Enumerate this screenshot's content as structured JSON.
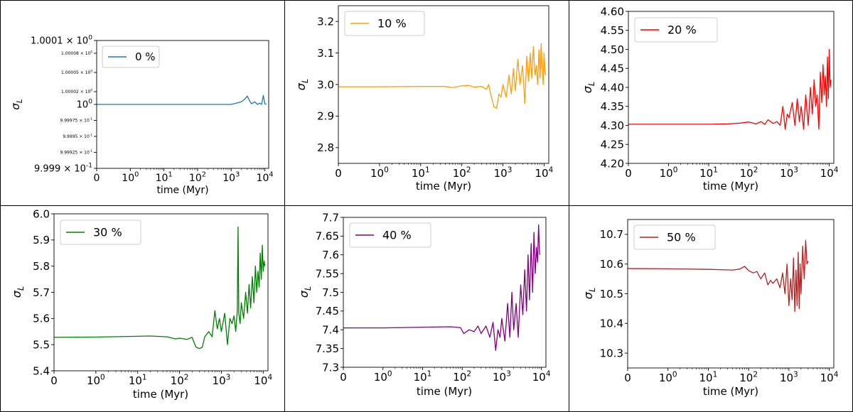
{
  "chart_data": [
    {
      "type": "line",
      "xlabel": "time (Myr)",
      "ylabel": "σ_L",
      "xscale": "symlog (linear 0–1, log above)",
      "xticks": [
        "0",
        "10^0",
        "10^1",
        "10^2",
        "10^3",
        "10^4"
      ],
      "ylim": [
        0.9999,
        1.0001
      ],
      "yticks": [
        {
          "value": 0.9999,
          "mant": "9.999",
          "exp": "-1"
        },
        {
          "value": 0.999925,
          "mant": "9.99925",
          "exp": "-1"
        },
        {
          "value": 0.99995,
          "mant": "9.9995",
          "exp": "-1"
        },
        {
          "value": 0.999975,
          "mant": "9.99975",
          "exp": "-1"
        },
        {
          "value": 1.0,
          "mant": "",
          "exp": "0"
        },
        {
          "value": 1.00002,
          "mant": "1.00002",
          "exp": "0"
        },
        {
          "value": 1.00005,
          "mant": "1.00005",
          "exp": "0"
        },
        {
          "value": 1.00008,
          "mant": "1.00008",
          "exp": "0"
        },
        {
          "value": 1.0001,
          "mant": "1.0001",
          "exp": "0"
        }
      ],
      "legend": "top-left",
      "series": [
        {
          "name": "0 %",
          "color": "#1f77b4",
          "x": [
            0,
            1,
            10,
            100,
            1000,
            2000,
            2500,
            3000,
            3500,
            4000,
            5000,
            6000,
            7000,
            8000,
            9000,
            10000,
            11000
          ],
          "y": [
            1.0,
            1.0,
            1.0,
            1.0,
            1.0,
            1.000004,
            1.000008,
            1.000013,
            1.000006,
            1.000001,
            1.000004,
            1.0,
            1.000002,
            1.0,
            1.000014,
            1.000001,
            1.0
          ]
        }
      ]
    },
    {
      "type": "line",
      "xlabel": "time (Myr)",
      "ylabel": "σ_L",
      "xticks": [
        "0",
        "10^0",
        "10^1",
        "10^2",
        "10^3",
        "10^4"
      ],
      "ylim": [
        2.75,
        3.25
      ],
      "yticks": [
        2.8,
        2.9,
        3.0,
        3.1,
        3.2
      ],
      "legend": "top-left",
      "series": [
        {
          "name": "10 %",
          "color": "#ff9d0a",
          "x": [
            0,
            1,
            10,
            40,
            60,
            100,
            150,
            200,
            300,
            400,
            450,
            500,
            550,
            600,
            700,
            800,
            900,
            1000,
            1200,
            1400,
            1600,
            1800,
            2000,
            2300,
            2600,
            3000,
            3400,
            3800,
            4200,
            4600,
            5000,
            5500,
            6000,
            6500,
            7000,
            7500,
            8000,
            8500,
            9000,
            9500,
            10000,
            10500,
            11000
          ],
          "y": [
            2.993,
            2.993,
            2.994,
            2.994,
            2.99,
            2.996,
            2.997,
            2.992,
            2.994,
            2.985,
            3.0,
            2.97,
            2.95,
            2.93,
            2.925,
            2.97,
            2.96,
            3.0,
            2.96,
            3.03,
            2.97,
            3.05,
            2.98,
            3.08,
            3.0,
            3.06,
            2.94,
            3.09,
            3.01,
            3.1,
            3.02,
            3.12,
            3.03,
            3.06,
            3.0,
            3.11,
            3.02,
            3.13,
            3.05,
            3.0,
            3.1,
            3.04,
            3.03
          ]
        }
      ]
    },
    {
      "type": "line",
      "xlabel": "time (Myr)",
      "ylabel": "σ_L",
      "xticks": [
        "0",
        "10^0",
        "10^1",
        "10^2",
        "10^3",
        "10^4"
      ],
      "ylim": [
        4.2,
        4.6
      ],
      "yticks": [
        4.2,
        4.25,
        4.3,
        4.35,
        4.4,
        4.45,
        4.5,
        4.55,
        4.6
      ],
      "legend": "top-left",
      "series": [
        {
          "name": "20 %",
          "color": "#ff0000",
          "x": [
            0,
            1,
            10,
            30,
            60,
            100,
            150,
            200,
            250,
            300,
            400,
            500,
            600,
            700,
            800,
            900,
            1000,
            1200,
            1400,
            1600,
            1800,
            2000,
            2300,
            2600,
            3000,
            3400,
            3800,
            4200,
            4600,
            5000,
            5500,
            6000,
            6500,
            7000,
            7500,
            8000,
            8500,
            9000,
            9500,
            10000,
            10500,
            11000
          ],
          "y": [
            4.303,
            4.303,
            4.303,
            4.304,
            4.306,
            4.309,
            4.304,
            4.31,
            4.303,
            4.315,
            4.305,
            4.31,
            4.3,
            4.35,
            4.29,
            4.33,
            4.32,
            4.36,
            4.3,
            4.37,
            4.31,
            4.35,
            4.29,
            4.38,
            4.3,
            4.4,
            4.33,
            4.42,
            4.35,
            4.38,
            4.29,
            4.44,
            4.36,
            4.46,
            4.38,
            4.43,
            4.35,
            4.48,
            4.37,
            4.5,
            4.4,
            4.42
          ]
        }
      ]
    },
    {
      "type": "line",
      "xlabel": "time (Myr)",
      "ylabel": "σ_L",
      "xticks": [
        "0",
        "10^0",
        "10^1",
        "10^2",
        "10^3",
        "10^4"
      ],
      "ylim": [
        5.4,
        6.0
      ],
      "yticks": [
        5.4,
        5.5,
        5.6,
        5.7,
        5.8,
        5.9,
        6.0
      ],
      "legend": "top-left",
      "series": [
        {
          "name": "30 %",
          "color": "#008000",
          "x": [
            0,
            1,
            10,
            20,
            50,
            80,
            100,
            150,
            200,
            220,
            250,
            300,
            350,
            400,
            450,
            500,
            600,
            700,
            800,
            900,
            1000,
            1200,
            1400,
            1600,
            1800,
            2000,
            2200,
            2400,
            2500,
            2600,
            2800,
            3000,
            3400,
            3800,
            4200,
            4600,
            5000,
            5500,
            6000,
            6500,
            7000,
            7500,
            8000,
            8500,
            9000,
            9500,
            10000,
            10500,
            11000
          ],
          "y": [
            5.528,
            5.529,
            5.532,
            5.533,
            5.53,
            5.522,
            5.525,
            5.52,
            5.528,
            5.51,
            5.49,
            5.485,
            5.49,
            5.53,
            5.54,
            5.55,
            5.53,
            5.63,
            5.56,
            5.6,
            5.55,
            5.62,
            5.5,
            5.6,
            5.58,
            5.61,
            5.55,
            5.63,
            5.95,
            5.62,
            5.58,
            5.66,
            5.6,
            5.7,
            5.62,
            5.73,
            5.64,
            5.76,
            5.66,
            5.8,
            5.7,
            5.78,
            5.72,
            5.85,
            5.75,
            5.88,
            5.78,
            5.82,
            5.8
          ]
        }
      ]
    },
    {
      "type": "line",
      "xlabel": "time (Myr)",
      "ylabel": "σ_L",
      "xticks": [
        "0",
        "10^0",
        "10^1",
        "10^2",
        "10^3",
        "10^4"
      ],
      "ylim": [
        7.3,
        7.7
      ],
      "yticks": [
        7.3,
        7.35,
        7.4,
        7.45,
        7.5,
        7.55,
        7.6,
        7.65,
        7.7
      ],
      "legend": "top-left",
      "series": [
        {
          "name": "40 %",
          "color": "#800080",
          "x": [
            0,
            1,
            10,
            50,
            90,
            110,
            150,
            200,
            250,
            300,
            400,
            500,
            600,
            700,
            800,
            900,
            1000,
            1200,
            1400,
            1600,
            1800,
            2000,
            2300,
            2600,
            3000,
            3400,
            3800,
            4200,
            4600,
            5000,
            5500,
            6000,
            6500,
            7000,
            7500,
            8000,
            8500,
            9000
          ],
          "y": [
            7.405,
            7.405,
            7.407,
            7.408,
            7.406,
            7.39,
            7.4,
            7.395,
            7.41,
            7.39,
            7.41,
            7.38,
            7.42,
            7.345,
            7.4,
            7.38,
            7.43,
            7.37,
            7.47,
            7.38,
            7.5,
            7.4,
            7.47,
            7.38,
            7.52,
            7.44,
            7.56,
            7.45,
            7.6,
            7.48,
            7.63,
            7.5,
            7.66,
            7.55,
            7.62,
            7.58,
            7.68,
            7.6
          ]
        }
      ]
    },
    {
      "type": "line",
      "xlabel": "time (Myr)",
      "ylabel": "σ_L",
      "xticks": [
        "0",
        "10^0",
        "10^1",
        "10^2",
        "10^3",
        "10^4"
      ],
      "ylim": [
        10.25,
        10.75
      ],
      "yticks": [
        10.3,
        10.4,
        10.5,
        10.6,
        10.7
      ],
      "legend": "top-left",
      "series": [
        {
          "name": "50 %",
          "color": "#b22222",
          "x": [
            0,
            1,
            10,
            40,
            60,
            80,
            100,
            130,
            160,
            200,
            250,
            300,
            350,
            400,
            500,
            600,
            700,
            800,
            900,
            1000,
            1100,
            1200,
            1300,
            1400,
            1500,
            1600,
            1700,
            1800,
            1900,
            2000,
            2200,
            2400,
            2600,
            2800,
            3000
          ],
          "y": [
            10.585,
            10.584,
            10.582,
            10.58,
            10.583,
            10.592,
            10.578,
            10.57,
            10.575,
            10.55,
            10.57,
            10.53,
            10.545,
            10.535,
            10.55,
            10.52,
            10.57,
            10.5,
            10.6,
            10.46,
            10.55,
            10.48,
            10.62,
            10.44,
            10.58,
            10.46,
            10.64,
            10.45,
            10.6,
            10.5,
            10.66,
            10.55,
            10.68,
            10.6,
            10.61
          ]
        }
      ]
    }
  ]
}
